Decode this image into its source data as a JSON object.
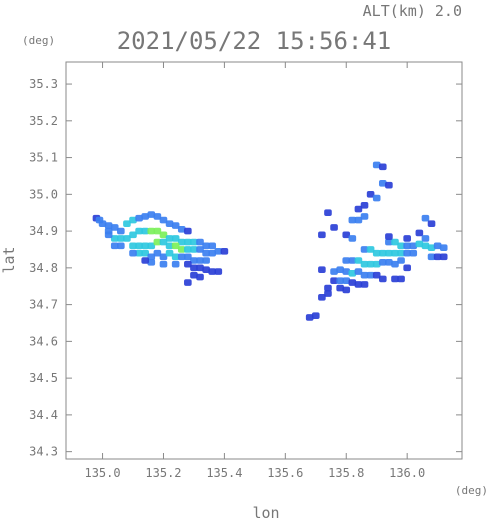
{
  "header": {
    "alt_label": "ALT(km) 2.0",
    "datetime": "2021/05/22 15:56:41"
  },
  "chart_data": {
    "type": "heatmap",
    "title": "2021/05/22 15:56:41",
    "subtitle": "ALT(km) 2.0",
    "xlabel": "lon",
    "ylabel": "lat",
    "x_unit": "(deg)",
    "y_unit": "(deg)",
    "xlim": [
      134.88,
      136.18
    ],
    "ylim": [
      34.28,
      35.36
    ],
    "x_ticks": [
      135.0,
      135.2,
      135.4,
      135.6,
      135.8,
      136.0
    ],
    "x_tick_labels": [
      "135.0",
      "135.2",
      "135.4",
      "135.6",
      "135.8",
      "136.0"
    ],
    "y_ticks": [
      34.3,
      34.4,
      34.5,
      34.6,
      34.7,
      34.8,
      34.9,
      35.0,
      35.1,
      35.2,
      35.3
    ],
    "y_tick_labels": [
      "34.3",
      "34.4",
      "34.5",
      "34.6",
      "34.7",
      "34.8",
      "34.9",
      "35.0",
      "35.1",
      "35.2",
      "35.3"
    ],
    "grid": false,
    "colors": {
      "low": "#2a3fd6",
      "mid": "#3b7ff0",
      "high": "#2ec8e0",
      "peak": "#7cf05a",
      "axis": "#8a8a8a",
      "text": "#777777"
    },
    "cells": [
      [
        134.98,
        34.935,
        0.3
      ],
      [
        134.99,
        34.93,
        0.4
      ],
      [
        135.0,
        34.92,
        0.4
      ],
      [
        135.02,
        34.915,
        0.5
      ],
      [
        135.04,
        34.91,
        0.5
      ],
      [
        135.06,
        34.9,
        0.5
      ],
      [
        135.08,
        34.92,
        0.6
      ],
      [
        135.1,
        34.93,
        0.6
      ],
      [
        135.12,
        34.935,
        0.5
      ],
      [
        135.14,
        34.94,
        0.5
      ],
      [
        135.16,
        34.945,
        0.4
      ],
      [
        135.18,
        34.94,
        0.5
      ],
      [
        135.2,
        34.93,
        0.5
      ],
      [
        135.22,
        34.92,
        0.5
      ],
      [
        135.24,
        34.915,
        0.4
      ],
      [
        135.26,
        34.905,
        0.4
      ],
      [
        135.28,
        34.9,
        0.3
      ],
      [
        135.04,
        34.88,
        0.6
      ],
      [
        135.06,
        34.88,
        0.6
      ],
      [
        135.08,
        34.88,
        0.7
      ],
      [
        135.1,
        34.89,
        0.7
      ],
      [
        135.12,
        34.9,
        0.8
      ],
      [
        135.14,
        34.9,
        0.8
      ],
      [
        135.16,
        34.9,
        0.85
      ],
      [
        135.18,
        34.9,
        0.9
      ],
      [
        135.2,
        34.89,
        0.85
      ],
      [
        135.22,
        34.88,
        0.8
      ],
      [
        135.24,
        34.88,
        0.75
      ],
      [
        135.26,
        34.87,
        0.8
      ],
      [
        135.28,
        34.87,
        0.7
      ],
      [
        135.3,
        34.87,
        0.6
      ],
      [
        135.32,
        34.87,
        0.5
      ],
      [
        135.34,
        34.86,
        0.5
      ],
      [
        135.36,
        34.86,
        0.4
      ],
      [
        135.1,
        34.86,
        0.7
      ],
      [
        135.12,
        34.86,
        0.75
      ],
      [
        135.14,
        34.86,
        0.8
      ],
      [
        135.16,
        34.86,
        0.8
      ],
      [
        135.18,
        34.87,
        0.85
      ],
      [
        135.2,
        34.87,
        0.8
      ],
      [
        135.22,
        34.86,
        0.8
      ],
      [
        135.24,
        34.86,
        0.9
      ],
      [
        135.26,
        34.85,
        0.85
      ],
      [
        135.28,
        34.85,
        0.7
      ],
      [
        135.3,
        34.85,
        0.6
      ],
      [
        135.32,
        34.85,
        0.5
      ],
      [
        135.34,
        34.84,
        0.5
      ],
      [
        135.36,
        34.84,
        0.4
      ],
      [
        135.38,
        34.845,
        0.4
      ],
      [
        135.4,
        34.845,
        0.3
      ],
      [
        135.12,
        34.84,
        0.6
      ],
      [
        135.14,
        34.84,
        0.6
      ],
      [
        135.16,
        34.83,
        0.5
      ],
      [
        135.18,
        34.84,
        0.5
      ],
      [
        135.2,
        34.83,
        0.55
      ],
      [
        135.22,
        34.84,
        0.6
      ],
      [
        135.24,
        34.83,
        0.6
      ],
      [
        135.26,
        34.83,
        0.55
      ],
      [
        135.28,
        34.83,
        0.5
      ],
      [
        135.3,
        34.82,
        0.5
      ],
      [
        135.32,
        34.82,
        0.45
      ],
      [
        135.34,
        34.82,
        0.4
      ],
      [
        135.16,
        34.815,
        0.4
      ],
      [
        135.2,
        34.81,
        0.4
      ],
      [
        135.24,
        34.81,
        0.4
      ],
      [
        135.28,
        34.81,
        0.35
      ],
      [
        135.3,
        34.8,
        0.35
      ],
      [
        135.32,
        34.8,
        0.3
      ],
      [
        135.34,
        34.795,
        0.3
      ],
      [
        135.3,
        34.78,
        0.3
      ],
      [
        135.32,
        34.775,
        0.25
      ],
      [
        135.36,
        34.79,
        0.3
      ],
      [
        135.38,
        34.79,
        0.25
      ],
      [
        135.28,
        34.76,
        0.2
      ],
      [
        135.14,
        34.82,
        0.3
      ],
      [
        135.06,
        34.86,
        0.5
      ],
      [
        135.04,
        34.86,
        0.4
      ],
      [
        135.02,
        34.89,
        0.4
      ],
      [
        135.02,
        34.9,
        0.5
      ],
      [
        135.1,
        34.84,
        0.4
      ],
      [
        135.9,
        35.08,
        0.4
      ],
      [
        135.92,
        35.075,
        0.3
      ],
      [
        135.92,
        35.03,
        0.4
      ],
      [
        135.94,
        35.025,
        0.3
      ],
      [
        135.88,
        35.0,
        0.3
      ],
      [
        135.9,
        34.99,
        0.4
      ],
      [
        135.86,
        34.97,
        0.3
      ],
      [
        135.84,
        34.96,
        0.3
      ],
      [
        135.74,
        34.95,
        0.3
      ],
      [
        135.82,
        34.93,
        0.4
      ],
      [
        135.84,
        34.93,
        0.5
      ],
      [
        135.86,
        34.94,
        0.4
      ],
      [
        135.76,
        34.91,
        0.3
      ],
      [
        135.72,
        34.89,
        0.3
      ],
      [
        135.8,
        34.89,
        0.3
      ],
      [
        135.82,
        34.88,
        0.4
      ],
      [
        136.06,
        34.935,
        0.4
      ],
      [
        136.08,
        34.92,
        0.3
      ],
      [
        136.04,
        34.895,
        0.3
      ],
      [
        136.06,
        34.88,
        0.4
      ],
      [
        135.94,
        34.87,
        0.5
      ],
      [
        135.96,
        34.87,
        0.6
      ],
      [
        135.98,
        34.86,
        0.6
      ],
      [
        136.0,
        34.86,
        0.5
      ],
      [
        136.02,
        34.86,
        0.5
      ],
      [
        136.04,
        34.865,
        0.6
      ],
      [
        136.06,
        34.86,
        0.65
      ],
      [
        136.08,
        34.855,
        0.6
      ],
      [
        136.1,
        34.86,
        0.5
      ],
      [
        136.12,
        34.855,
        0.4
      ],
      [
        135.86,
        34.85,
        0.5
      ],
      [
        135.88,
        34.85,
        0.6
      ],
      [
        135.9,
        34.84,
        0.7
      ],
      [
        135.92,
        34.84,
        0.7
      ],
      [
        135.94,
        34.84,
        0.7
      ],
      [
        135.96,
        34.84,
        0.6
      ],
      [
        135.98,
        34.84,
        0.6
      ],
      [
        136.0,
        34.84,
        0.5
      ],
      [
        136.02,
        34.84,
        0.45
      ],
      [
        136.08,
        34.83,
        0.4
      ],
      [
        136.1,
        34.83,
        0.35
      ],
      [
        136.12,
        34.83,
        0.3
      ],
      [
        135.8,
        34.82,
        0.45
      ],
      [
        135.82,
        34.82,
        0.55
      ],
      [
        135.84,
        34.82,
        0.65
      ],
      [
        135.86,
        34.81,
        0.75
      ],
      [
        135.88,
        34.81,
        0.7
      ],
      [
        135.9,
        34.81,
        0.6
      ],
      [
        135.92,
        34.815,
        0.55
      ],
      [
        135.94,
        34.815,
        0.5
      ],
      [
        135.96,
        34.81,
        0.4
      ],
      [
        135.98,
        34.82,
        0.4
      ],
      [
        136.0,
        34.8,
        0.3
      ],
      [
        135.72,
        34.795,
        0.3
      ],
      [
        135.76,
        34.79,
        0.4
      ],
      [
        135.78,
        34.795,
        0.5
      ],
      [
        135.8,
        34.79,
        0.55
      ],
      [
        135.82,
        34.785,
        0.6
      ],
      [
        135.84,
        34.79,
        0.5
      ],
      [
        135.86,
        34.78,
        0.45
      ],
      [
        135.88,
        34.78,
        0.4
      ],
      [
        135.9,
        34.78,
        0.35
      ],
      [
        135.92,
        34.77,
        0.3
      ],
      [
        135.96,
        34.77,
        0.3
      ],
      [
        135.98,
        34.77,
        0.25
      ],
      [
        135.76,
        34.765,
        0.3
      ],
      [
        135.78,
        34.765,
        0.4
      ],
      [
        135.8,
        34.765,
        0.45
      ],
      [
        135.82,
        34.76,
        0.35
      ],
      [
        135.84,
        34.755,
        0.35
      ],
      [
        135.86,
        34.755,
        0.3
      ],
      [
        135.78,
        34.745,
        0.3
      ],
      [
        135.8,
        34.74,
        0.3
      ],
      [
        135.74,
        34.73,
        0.3
      ],
      [
        135.72,
        34.72,
        0.25
      ],
      [
        135.74,
        34.745,
        0.2
      ],
      [
        135.68,
        34.665,
        0.3
      ],
      [
        135.7,
        34.67,
        0.25
      ],
      [
        135.94,
        34.885,
        0.3
      ],
      [
        136.0,
        34.88,
        0.3
      ]
    ]
  }
}
